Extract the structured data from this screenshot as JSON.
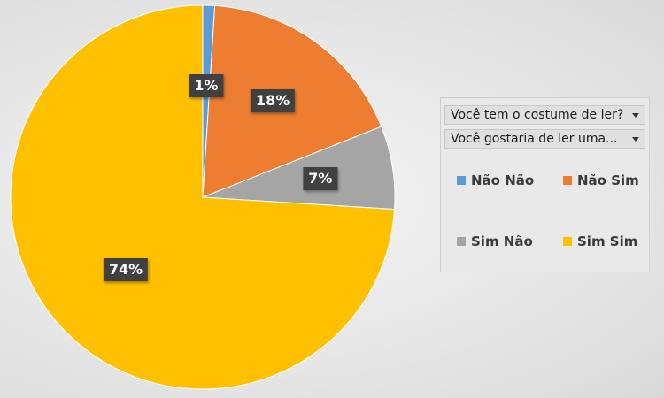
{
  "chart_data": {
    "type": "pie",
    "categories": [
      "Não Não",
      "Não Sim",
      "Sim Não",
      "Sim Sim"
    ],
    "values": [
      1,
      18,
      7,
      74
    ],
    "data_labels": [
      "1%",
      "18%",
      "7%",
      "74%"
    ],
    "colors": [
      "#5b9bd5",
      "#ed7d31",
      "#a5a5a5",
      "#ffc000"
    ],
    "legend_placement": "right"
  },
  "filters": [
    {
      "label": "Você tem o costume de ler?"
    },
    {
      "label": "Você gostaria de ler uma..."
    }
  ],
  "legend": {
    "items": [
      {
        "label": "Não Não",
        "color": "#5b9bd5"
      },
      {
        "label": "Não Sim",
        "color": "#ed7d31"
      },
      {
        "label": "Sim Não",
        "color": "#a5a5a5"
      },
      {
        "label": "Sim Sim",
        "color": "#ffc000"
      }
    ]
  },
  "icons": {
    "filter_caret": "chevron-down-icon"
  }
}
